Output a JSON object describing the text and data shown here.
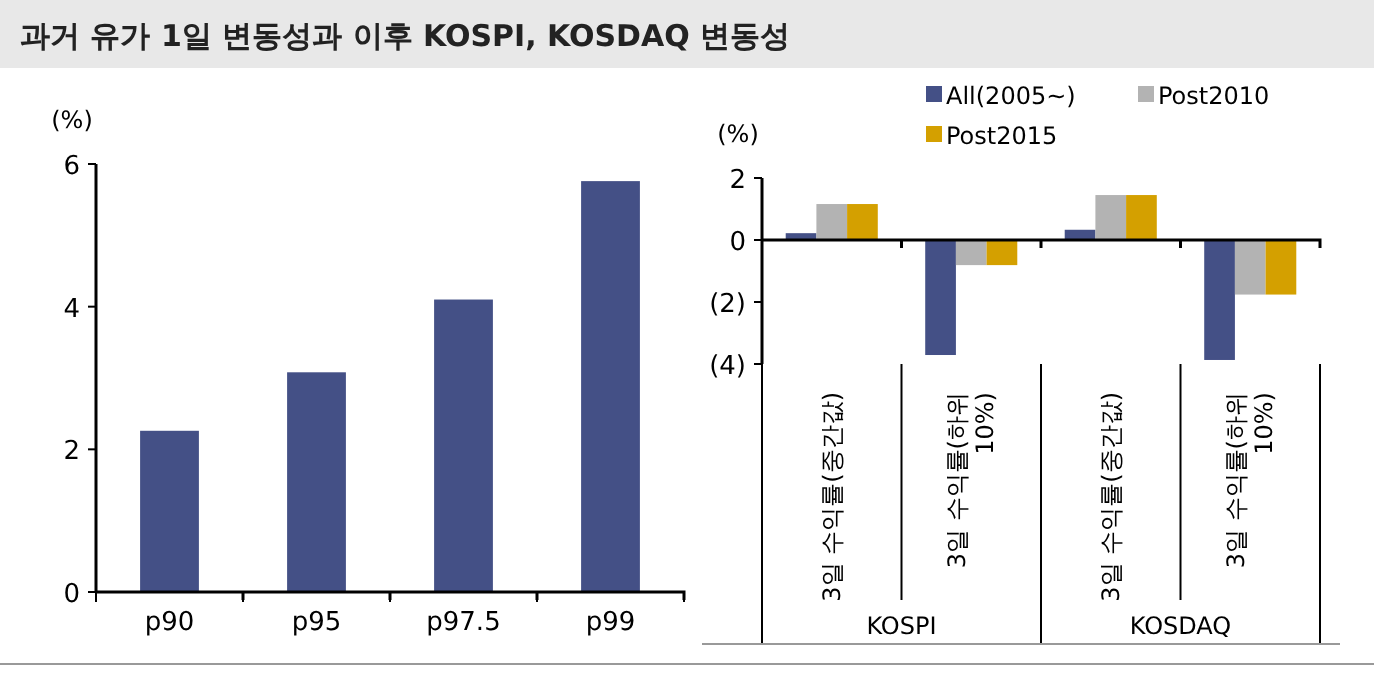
{
  "chart_data": [
    {
      "type": "bar",
      "title": "과거 유가 1일 변동성과 이후 KOSPI, KOSDAQ 변동성",
      "ylabel": "(%)",
      "categories": [
        "p90",
        "p95",
        "p97.5",
        "p99"
      ],
      "values": [
        2.26,
        3.08,
        4.1,
        5.76
      ],
      "color": "#445086",
      "ylim": [
        0,
        6
      ],
      "yticks": [
        0,
        2,
        4,
        6
      ],
      "grid": false,
      "legend": false
    },
    {
      "type": "bar",
      "ylabel": "(%)",
      "categories": [
        "3일 수익률(중간값)",
        "3일 수익률(하위 10%)",
        "3일 수익률(중간값)",
        "3일 수익률(하위 10%)"
      ],
      "series": [
        {
          "name": "All(2005~)",
          "color": "#445086",
          "values": [
            0.22,
            -3.71,
            0.33,
            -3.87
          ]
        },
        {
          "name": "Post2010",
          "color": "#b3b3b3",
          "values": [
            1.16,
            -0.81,
            1.45,
            -1.76
          ]
        },
        {
          "name": "Post2015",
          "color": "#d4a000",
          "values": [
            1.16,
            -0.81,
            1.45,
            -1.76
          ]
        }
      ],
      "ylim": [
        -4,
        2
      ],
      "yticks": [
        2,
        0,
        {
          "value": -2,
          "label": "(2)"
        },
        {
          "value": -4,
          "label": "(4)"
        }
      ],
      "grid": false,
      "legend": "top",
      "annotations": [
        "KOSPI",
        "KOSDAQ"
      ]
    }
  ]
}
